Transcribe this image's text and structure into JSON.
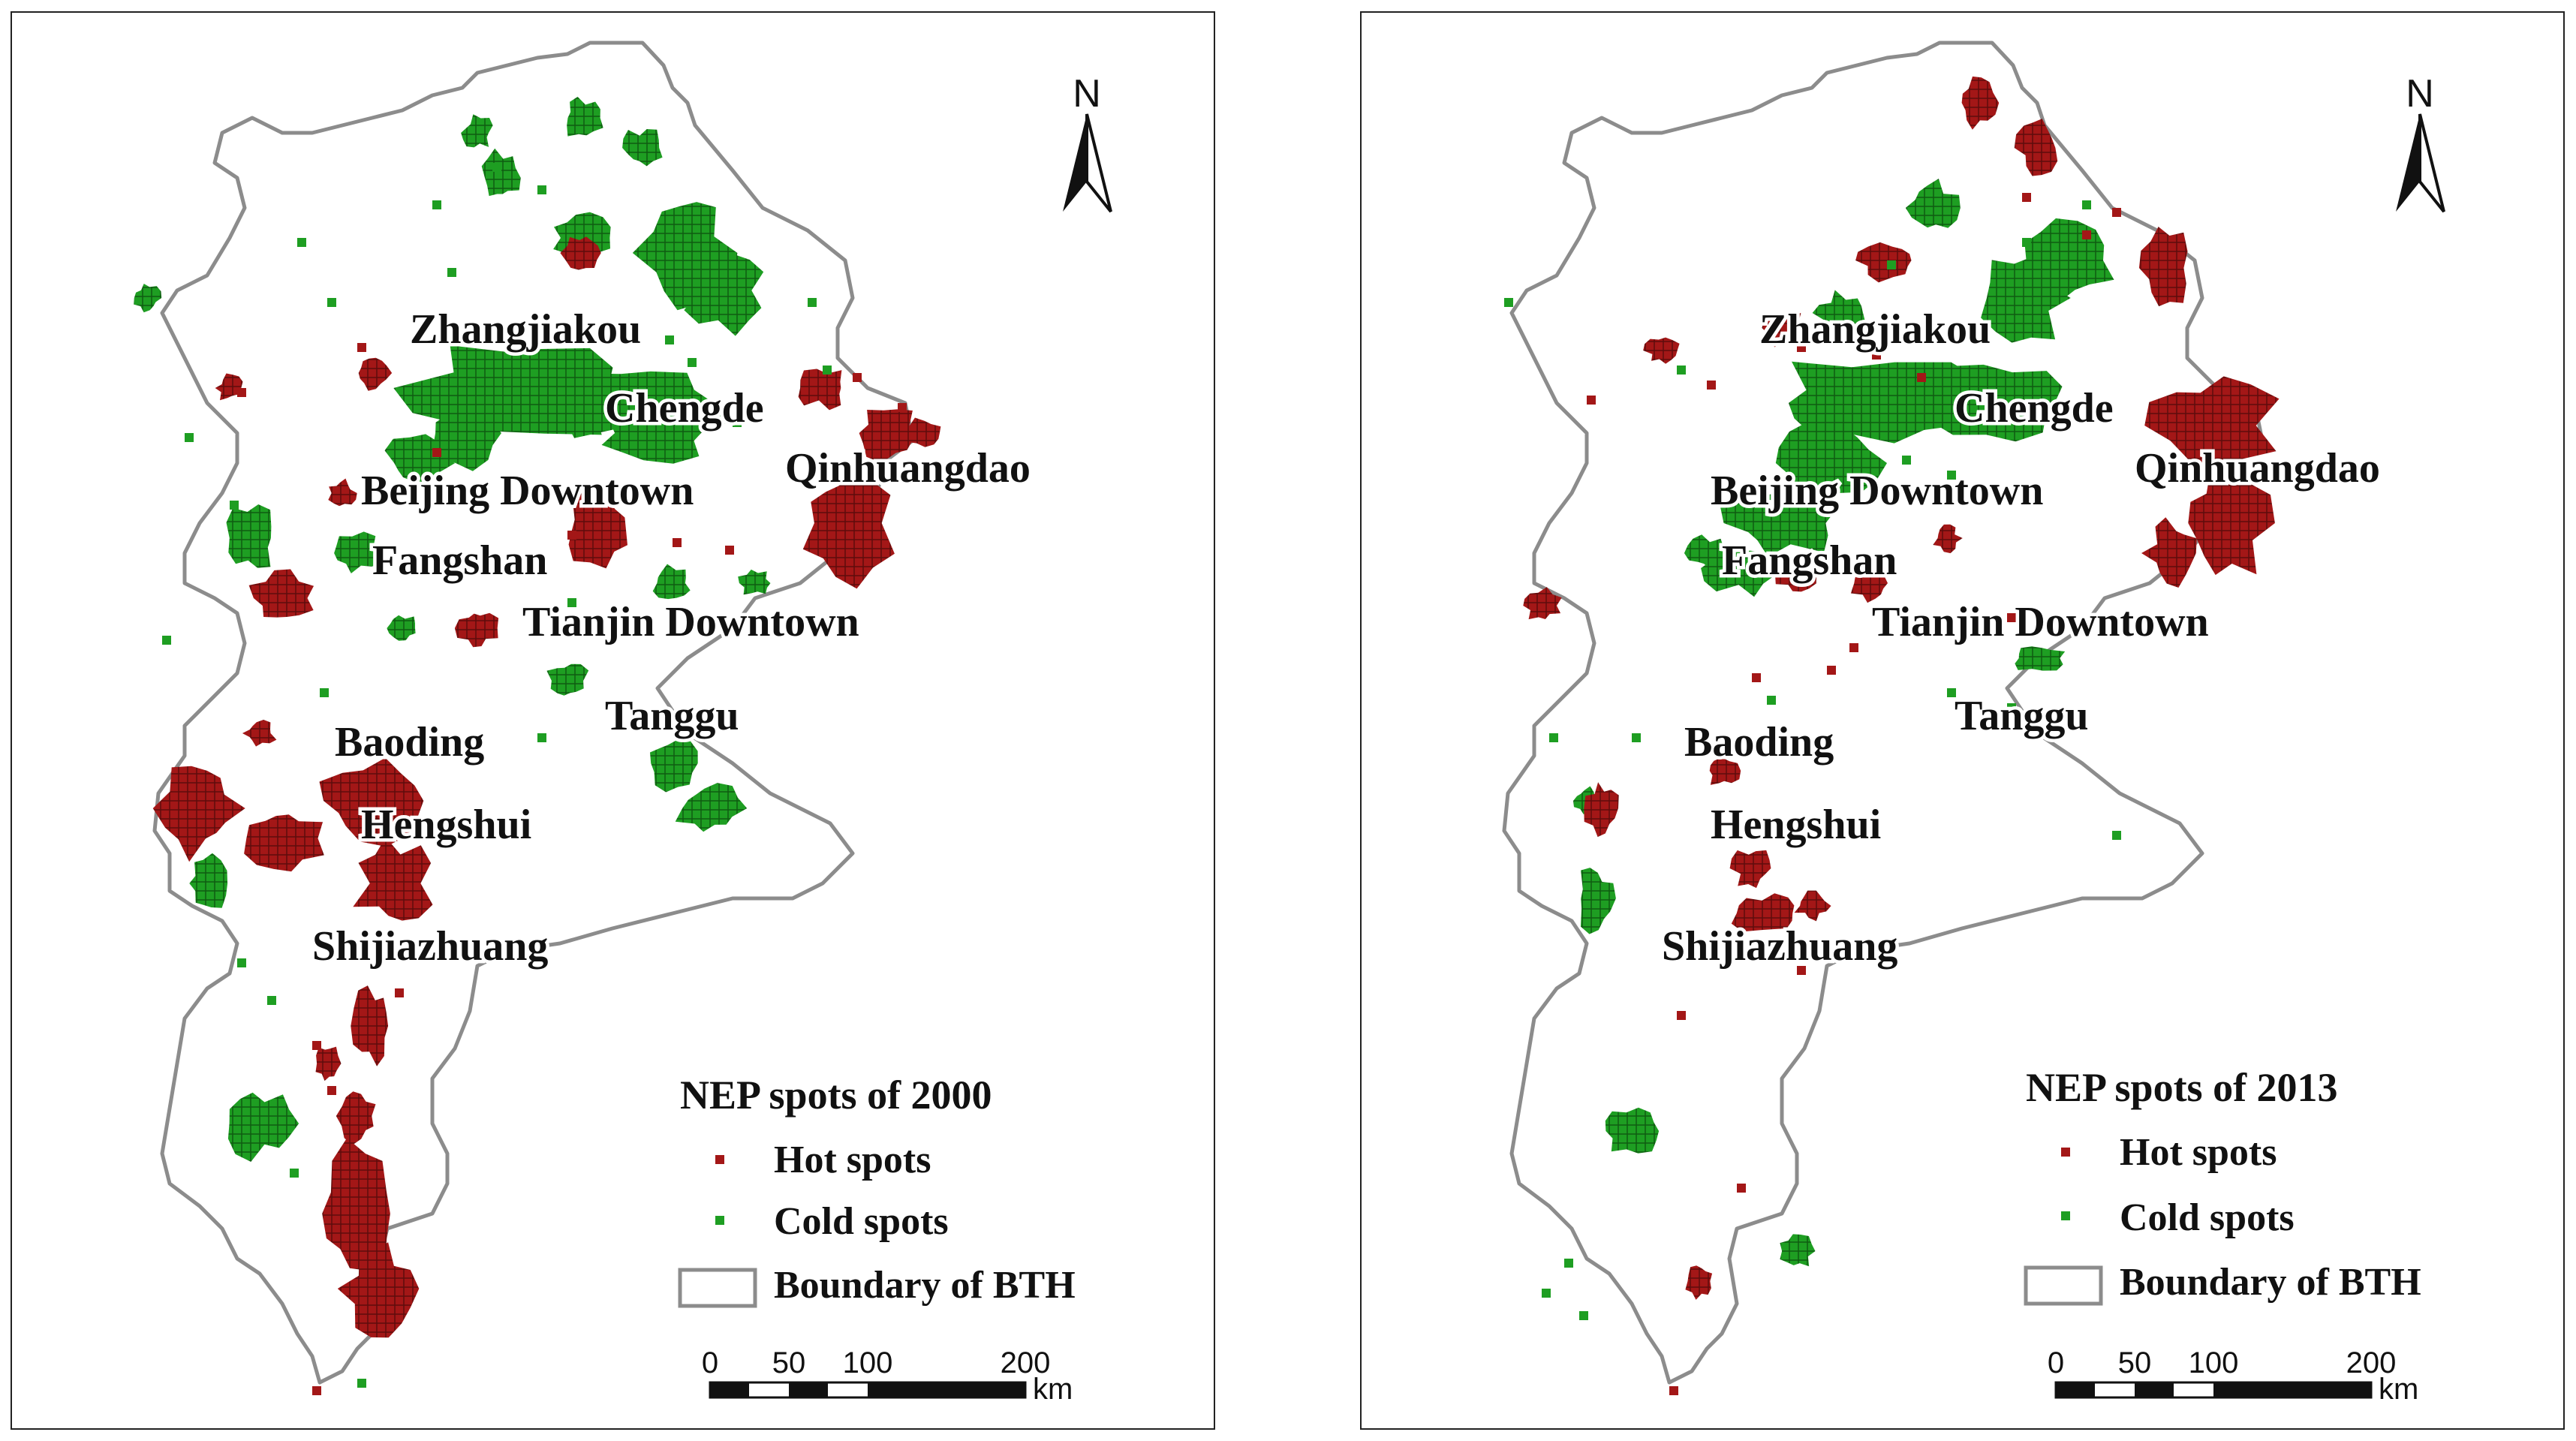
{
  "panels": [
    {
      "id": "a",
      "year": "2000",
      "legend": {
        "title": "NEP spots of 2000",
        "hot": "Hot spots",
        "cold": "Cold spots",
        "boundary": "Boundary of BTH"
      },
      "north_label": "N",
      "scale": {
        "ticks": [
          "0",
          "50",
          "100",
          "200"
        ],
        "unit": "km"
      },
      "cities": {
        "zhangjiakou": "Zhangjiakou",
        "chengde": "Chengde",
        "qinhuangdao": "Qinhuangdao",
        "beijing": "Beijing Downtown",
        "fangshan": "Fangshan",
        "tianjin": "Tianjin Downtown",
        "tanggu": "Tanggu",
        "baoding": "Baoding",
        "hengshui": "Hengshui",
        "shijiazhuang": "Shijiazhuang"
      }
    },
    {
      "id": "b",
      "year": "2013",
      "legend": {
        "title": "NEP spots of 2013",
        "hot": "Hot spots",
        "cold": "Cold spots",
        "boundary": "Boundary of BTH"
      },
      "north_label": "N",
      "scale": {
        "ticks": [
          "0",
          "50",
          "100",
          "200"
        ],
        "unit": "km"
      },
      "cities": {
        "zhangjiakou": "Zhangjiakou",
        "chengde": "Chengde",
        "qinhuangdao": "Qinhuangdao",
        "beijing": "Beijing Downtown",
        "fangshan": "Fangshan",
        "tianjin": "Tianjin Downtown",
        "tanggu": "Tanggu",
        "baoding": "Baoding",
        "hengshui": "Hengshui",
        "shijiazhuang": "Shijiazhuang"
      }
    }
  ],
  "colors": {
    "hot": "#a31717",
    "cold": "#1e9e22",
    "boundary": "#8c8c8c",
    "frame": "#222222"
  }
}
